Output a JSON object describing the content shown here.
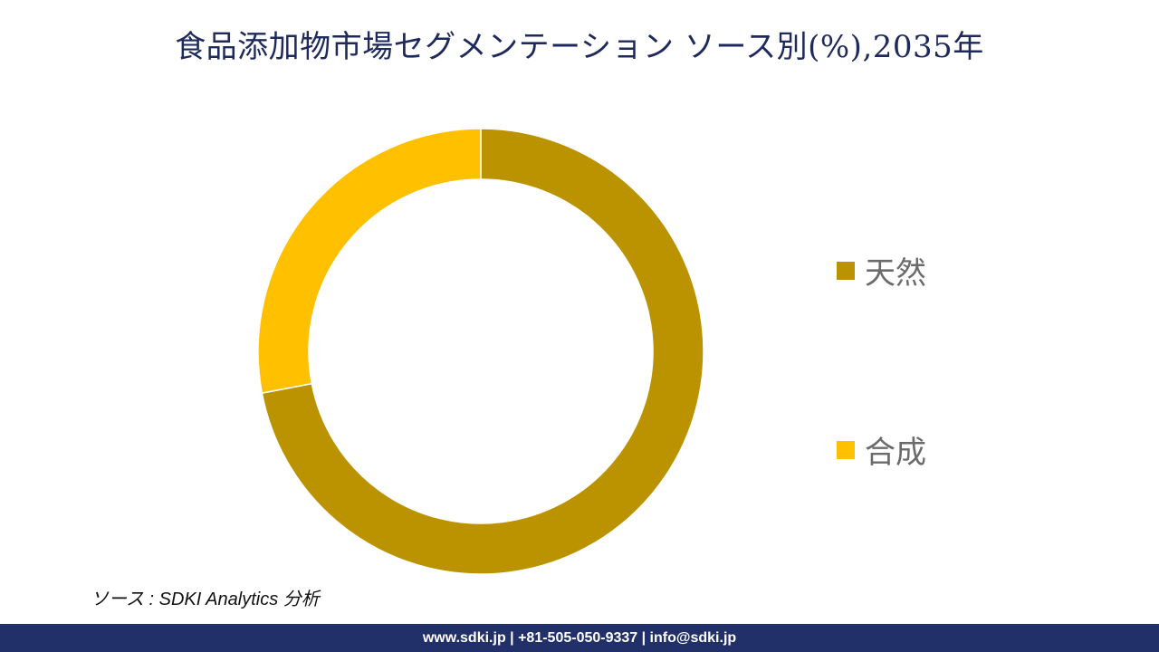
{
  "title": "食品添加物市場セグメンテーション ソース別(%),2035年",
  "chart_data": {
    "type": "pie",
    "style": "donut",
    "categories": [
      "天然",
      "合成"
    ],
    "values": [
      72,
      28
    ],
    "colors": [
      "#bb9300",
      "#ffc000"
    ],
    "legend_placement": "right"
  },
  "source_note": "ソース : SDKI Analytics  分析",
  "footer": "www.sdki.jp | +81-505-050-9337 | info@sdki.jp"
}
